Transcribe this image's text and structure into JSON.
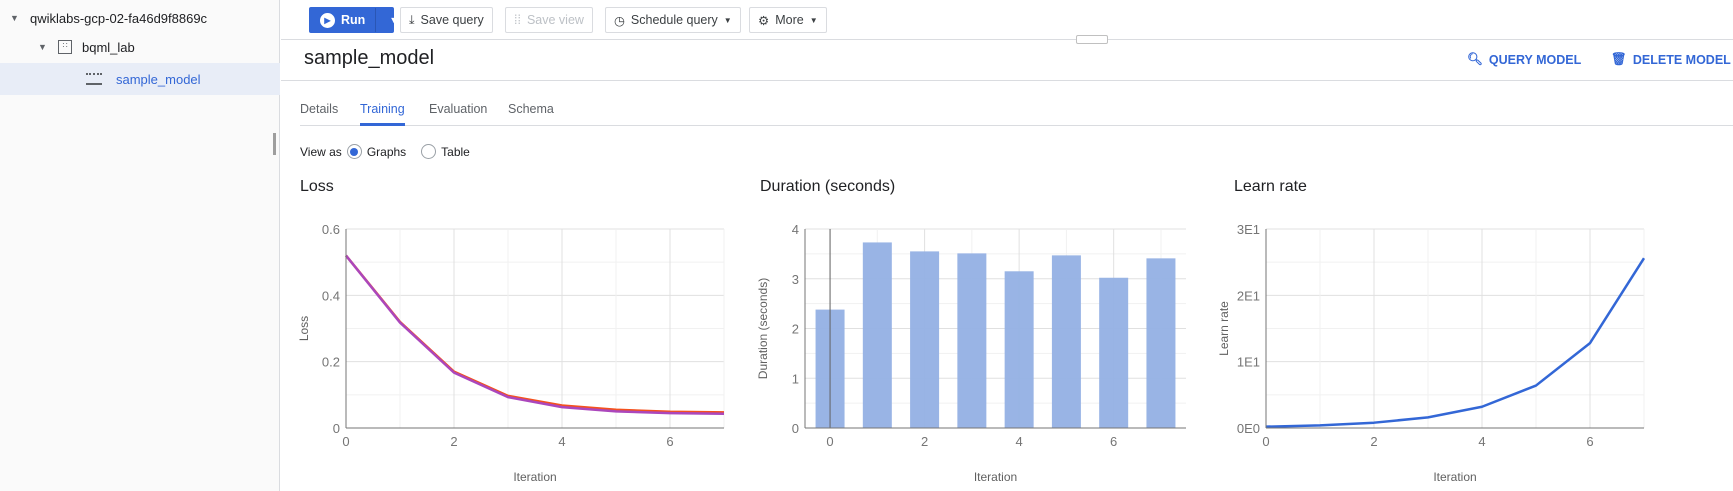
{
  "sidebar": {
    "items": [
      {
        "label": "qwiklabs-gcp-02-fa46d9f8869c"
      },
      {
        "label": "bqml_lab"
      },
      {
        "label": "sample_model"
      }
    ]
  },
  "toolbar": {
    "run": "Run",
    "save_query": "Save query",
    "save_view": "Save view",
    "schedule_query": "Schedule query",
    "more": "More"
  },
  "model": {
    "title": "sample_model",
    "query_model": "QUERY MODEL",
    "delete_model": "DELETE MODEL"
  },
  "tabs": [
    {
      "label": "Details"
    },
    {
      "label": "Training",
      "active": true
    },
    {
      "label": "Evaluation"
    },
    {
      "label": "Schema"
    }
  ],
  "view_as": {
    "label": "View as",
    "options": [
      "Graphs",
      "Table"
    ],
    "selected": "Graphs"
  },
  "colors": {
    "accent": "#3367d6",
    "bar": "#94b0e4",
    "loss_train": "#f4511e",
    "loss_eval": "#ab47bc",
    "line": "#3367d6"
  },
  "chart_data": [
    {
      "type": "line",
      "title": "Loss",
      "xlabel": "Iteration",
      "ylabel": "Loss",
      "xlim": [
        0,
        7
      ],
      "ylim": [
        0,
        0.6
      ],
      "xticks": [
        "0",
        "2",
        "4",
        "6"
      ],
      "yticks": [
        "0",
        "0.2",
        "0.4",
        "0.6"
      ],
      "grid": true,
      "x": [
        0,
        1,
        2,
        3,
        4,
        5,
        6,
        7
      ],
      "series": [
        {
          "values": [
            0.52,
            0.32,
            0.17,
            0.097,
            0.068,
            0.055,
            0.049,
            0.047
          ],
          "color": "#f4511e"
        },
        {
          "values": [
            0.52,
            0.318,
            0.167,
            0.093,
            0.063,
            0.05,
            0.045,
            0.043
          ],
          "color": "#ab47bc"
        }
      ]
    },
    {
      "type": "bar",
      "title": "Duration (seconds)",
      "xlabel": "Iteration",
      "ylabel": "Duration (seconds)",
      "xlim": [
        -0.53,
        7.53
      ],
      "ylim": [
        0,
        4
      ],
      "xticks": [
        "0",
        "2",
        "4",
        "6"
      ],
      "yticks": [
        "0",
        "1",
        "2",
        "3",
        "4"
      ],
      "grid": true,
      "x": [
        0,
        1,
        2,
        3,
        4,
        5,
        6,
        7
      ],
      "values": [
        2.38,
        3.73,
        3.55,
        3.51,
        3.15,
        3.47,
        3.02,
        3.41
      ]
    },
    {
      "type": "line",
      "title": "Learn rate",
      "xlabel": "Iteration",
      "ylabel": "Learn rate",
      "xlim": [
        0,
        7
      ],
      "ylim": [
        0,
        30
      ],
      "xticks": [
        "0",
        "2",
        "4",
        "6"
      ],
      "yticks": [
        "0E0",
        "1E1",
        "2E1",
        "3E1"
      ],
      "grid": true,
      "x": [
        0,
        1,
        2,
        3,
        4,
        5,
        6,
        7
      ],
      "series": [
        {
          "values": [
            0.2,
            0.4,
            0.8,
            1.6,
            3.2,
            6.4,
            12.8,
            25.6
          ],
          "color": "#3367d6"
        }
      ]
    }
  ]
}
